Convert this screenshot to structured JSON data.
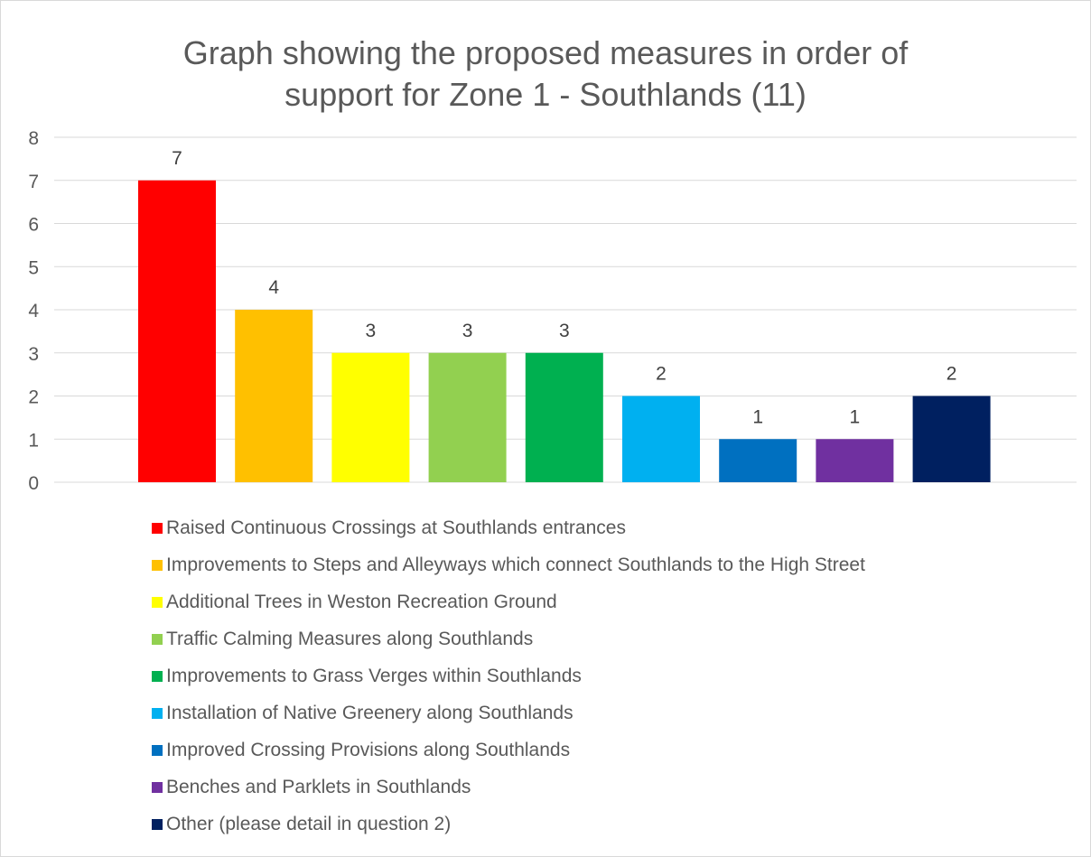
{
  "chart_data": {
    "type": "bar",
    "title_lines": [
      "Graph showing the proposed measures in order of",
      "support for Zone 1 - Southlands (11)"
    ],
    "xlabel": "",
    "ylabel": "",
    "ylim": [
      0,
      8
    ],
    "y_ticks": [
      "0",
      "1",
      "2",
      "3",
      "4",
      "5",
      "6",
      "7",
      "8"
    ],
    "grid": true,
    "legend_position": "bottom",
    "categories": [
      "Raised Continuous Crossings at Southlands entrances",
      "Improvements to Steps and Alleyways which connect Southlands to the High Street",
      "Additional Trees in Weston Recreation Ground",
      "Traffic Calming Measures along Southlands",
      "Improvements to Grass Verges within Southlands",
      "Installation of Native Greenery along Southlands",
      "Improved Crossing Provisions along Southlands",
      "Benches and Parklets in Southlands",
      "Other (please detail in question 2)"
    ],
    "values": [
      7,
      4,
      3,
      3,
      3,
      2,
      1,
      1,
      2
    ],
    "data_labels": [
      "7",
      "4",
      "3",
      "3",
      "3",
      "2",
      "1",
      "1",
      "2"
    ],
    "colors": [
      "#ff0000",
      "#ffc000",
      "#ffff00",
      "#92d050",
      "#00b050",
      "#00b0f0",
      "#0070c0",
      "#7030a0",
      "#002060"
    ]
  }
}
